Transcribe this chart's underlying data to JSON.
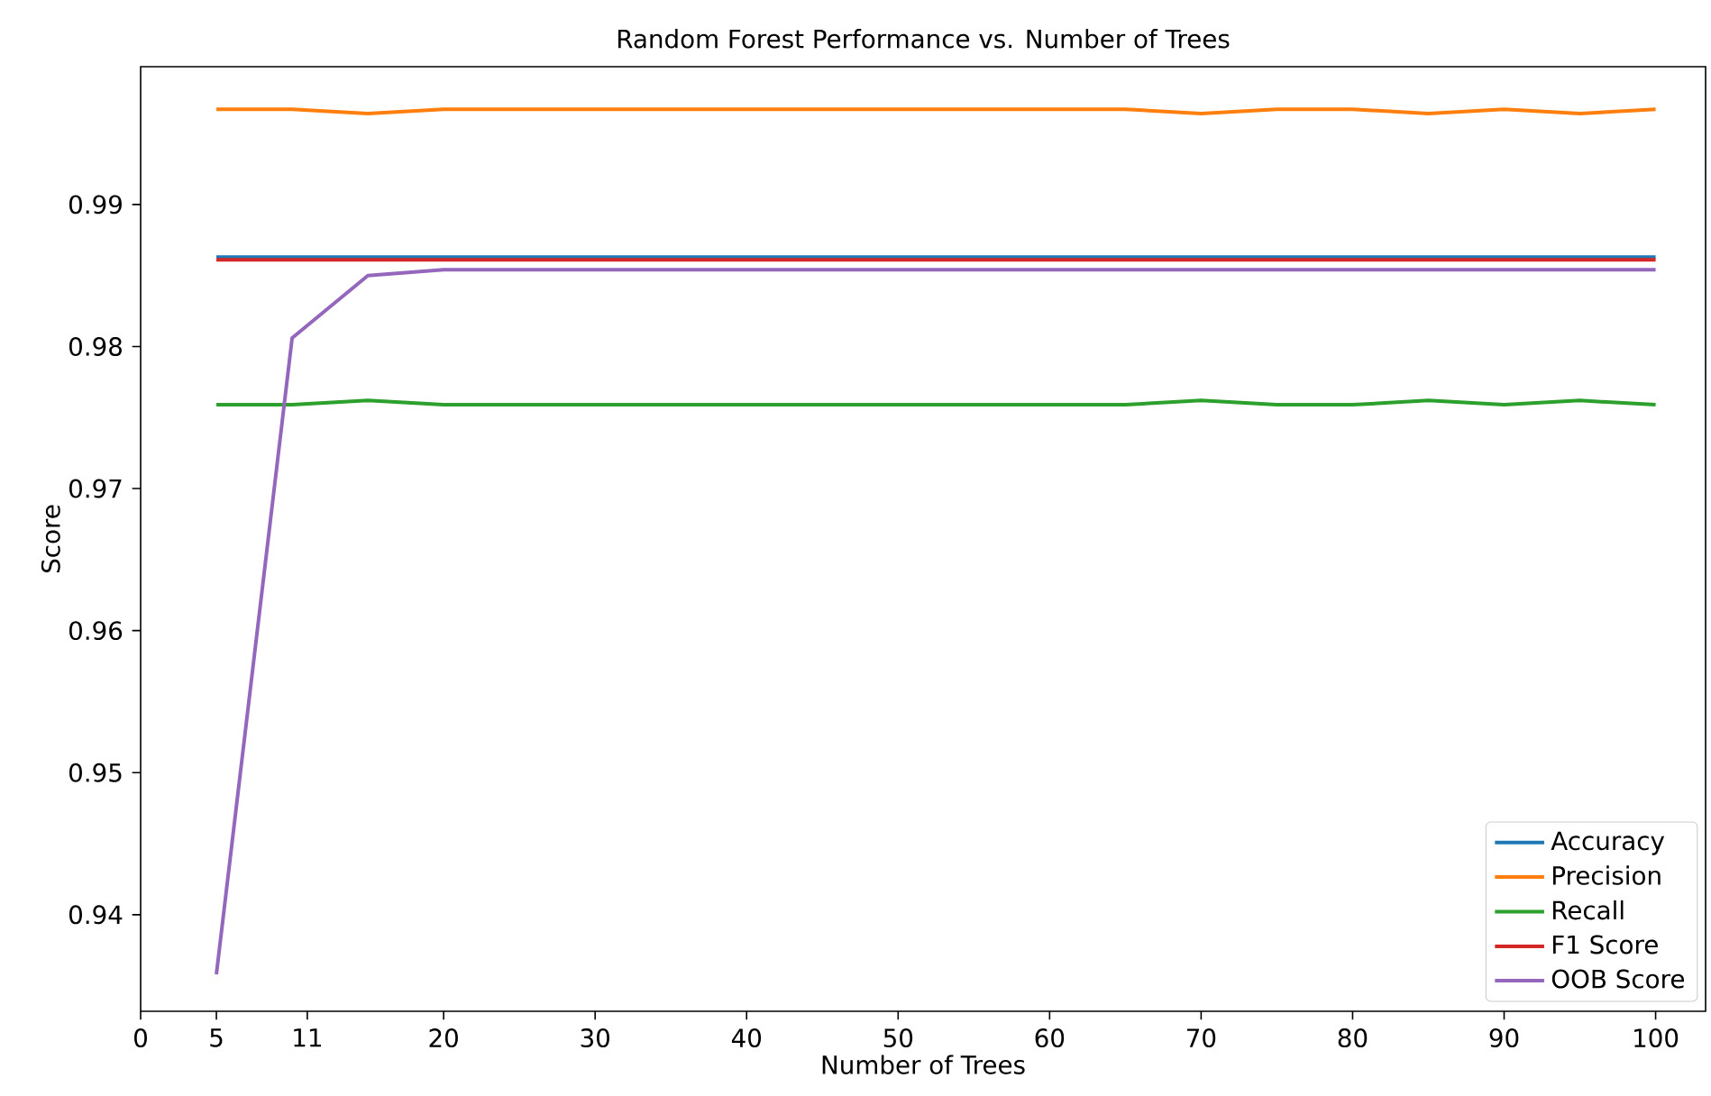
{
  "chart_data": {
    "type": "line",
    "title": "Random Forest Performance vs. Number of Trees",
    "xlabel": "Number of Trees",
    "ylabel": "Score",
    "x": [
      5,
      10,
      15,
      20,
      25,
      30,
      35,
      40,
      45,
      50,
      55,
      60,
      65,
      70,
      75,
      80,
      85,
      90,
      95,
      100
    ],
    "series": [
      {
        "name": "Accuracy",
        "color": "#1f77b4",
        "values": [
          0.9863,
          0.9863,
          0.9863,
          0.9863,
          0.9863,
          0.9863,
          0.9863,
          0.9863,
          0.9863,
          0.9863,
          0.9863,
          0.9863,
          0.9863,
          0.9863,
          0.9863,
          0.9863,
          0.9863,
          0.9863,
          0.9863,
          0.9863
        ]
      },
      {
        "name": "Precision",
        "color": "#ff7f0e",
        "values": [
          0.9967,
          0.9967,
          0.9964,
          0.9967,
          0.9967,
          0.9967,
          0.9967,
          0.9967,
          0.9967,
          0.9967,
          0.9967,
          0.9967,
          0.9967,
          0.9964,
          0.9967,
          0.9967,
          0.9964,
          0.9967,
          0.9964,
          0.9967
        ]
      },
      {
        "name": "Recall",
        "color": "#2ca02c",
        "values": [
          0.9759,
          0.9759,
          0.9762,
          0.9759,
          0.9759,
          0.9759,
          0.9759,
          0.9759,
          0.9759,
          0.9759,
          0.9759,
          0.9759,
          0.9759,
          0.9762,
          0.9759,
          0.9759,
          0.9762,
          0.9759,
          0.9762,
          0.9759
        ]
      },
      {
        "name": "F1 Score",
        "color": "#d62728",
        "values": [
          0.9861,
          0.9861,
          0.9861,
          0.9861,
          0.9861,
          0.9861,
          0.9861,
          0.9861,
          0.9861,
          0.9861,
          0.9861,
          0.9861,
          0.9861,
          0.9861,
          0.9861,
          0.9861,
          0.9861,
          0.9861,
          0.9861,
          0.9861
        ]
      },
      {
        "name": "OOB Score",
        "color": "#9467bd",
        "values": [
          0.9358,
          0.9806,
          0.985,
          0.9854,
          0.9854,
          0.9854,
          0.9854,
          0.9854,
          0.9854,
          0.9854,
          0.9854,
          0.9854,
          0.9854,
          0.9854,
          0.9854,
          0.9854,
          0.9854,
          0.9854,
          0.9854,
          0.9854
        ]
      }
    ],
    "xlim": [
      0,
      103.3
    ],
    "xticks": [
      0,
      5,
      11,
      20,
      30,
      40,
      50,
      60,
      70,
      80,
      90,
      100
    ],
    "ylim": [
      0.9332,
      0.9997
    ],
    "yticks": [
      0.94,
      0.95,
      0.96,
      0.97,
      0.98,
      0.99
    ],
    "legend": "bottom right",
    "line_style": "solid"
  }
}
